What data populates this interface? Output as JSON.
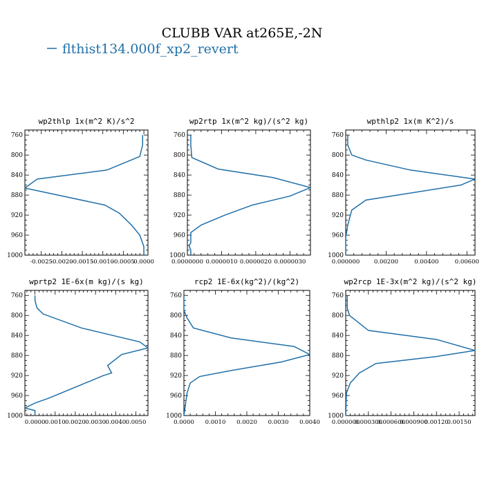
{
  "figure": {
    "title": "CLUBB VAR at265E,-2N",
    "legend_label": "flthist134.000f_xp2_revert",
    "series_color": "#1f6fa8"
  },
  "chart_data": [
    {
      "type": "line",
      "title": "wp2thlp  1x(m^2 K)/s^2",
      "ylim": [
        1000,
        750
      ],
      "xlim": [
        -0.0029,
        0.0001
      ],
      "xticks": [
        -0.0025,
        -0.002,
        -0.0015,
        -0.001,
        -0.0005,
        0.0
      ],
      "xtick_labels": [
        "-0.0025",
        "-0.0020",
        "-0.0015",
        "-0.0010",
        "-0.0005",
        "0.0000"
      ],
      "yticks": [
        760,
        800,
        840,
        880,
        920,
        960,
        1000
      ],
      "series": [
        {
          "x": [
            -3e-05,
            -3e-05,
            -0.0001,
            -0.0009,
            -0.0026,
            -0.0029,
            -0.00095,
            -0.0006,
            -0.0003,
            -0.0001,
            0.0,
            0.0
          ],
          "y": [
            760,
            780,
            803,
            830,
            848,
            866,
            900,
            916,
            940,
            960,
            983,
            1000
          ]
        }
      ]
    },
    {
      "type": "line",
      "title": "wp2rtp  1x(m^2 kg)/(s^2 kg)",
      "ylim": [
        1000,
        750
      ],
      "xlim": [
        0.0,
        3.6e-06
      ],
      "xticks": [
        0.0,
        1e-06,
        2e-06,
        3e-06
      ],
      "xtick_labels": [
        "0.0000000",
        "0.0000010",
        "0.0000020",
        "0.0000030"
      ],
      "yticks": [
        760,
        800,
        840,
        880,
        920,
        960,
        1000
      ],
      "series": [
        {
          "x": [
            1e-07,
            1e-07,
            1.3e-07,
            9e-07,
            2.5e-06,
            3.6e-06,
            3e-06,
            1.9e-06,
            1.1e-06,
            4e-07,
            1e-07,
            1e-07,
            1e-07,
            5e-08,
            1e-07,
            1e-07
          ],
          "y": [
            760,
            780,
            805,
            828,
            845,
            865,
            882,
            900,
            920,
            940,
            955,
            965,
            975,
            982,
            990,
            1000
          ]
        }
      ]
    },
    {
      "type": "line",
      "title": "wpthlp2  1x(m K^2)/s",
      "ylim": [
        1000,
        750
      ],
      "xlim": [
        0.0,
        0.0064
      ],
      "xticks": [
        0.0,
        0.002,
        0.004,
        0.006
      ],
      "xtick_labels": [
        "0.000000",
        "0.00200",
        "0.00400",
        "0.00600"
      ],
      "yticks": [
        760,
        800,
        840,
        880,
        920,
        960,
        1000
      ],
      "series": [
        {
          "x": [
            0.0001,
            0.0001,
            0.0003,
            0.001,
            0.0032,
            0.0064,
            0.0057,
            0.001,
            0.0003,
            0.0001,
            0.0,
            0.0
          ],
          "y": [
            760,
            780,
            800,
            810,
            830,
            848,
            860,
            890,
            910,
            940,
            965,
            1000
          ]
        }
      ]
    },
    {
      "type": "line",
      "title": "wprtp2  1E-6x(m kg)/(s kg)",
      "ylim": [
        1000,
        750
      ],
      "xlim": [
        -0.0005,
        0.0056
      ],
      "xticks": [
        0.0,
        0.001,
        0.002,
        0.003,
        0.004,
        0.005
      ],
      "xtick_labels": [
        "0.0000",
        "0.0010",
        "0.0020",
        "0.0030",
        "0.0040",
        "0.0050"
      ],
      "yticks": [
        760,
        800,
        840,
        880,
        920,
        960,
        1000
      ],
      "series": [
        {
          "x": [
            0.0,
            0.0,
            0.0001,
            0.0004,
            0.0023,
            0.0052,
            0.0056,
            0.0043,
            0.0036,
            0.0038,
            0.0034,
            0.0007,
            0.0,
            -0.0005,
            0.0,
            0.0
          ],
          "y": [
            760,
            770,
            785,
            797,
            825,
            853,
            865,
            878,
            900,
            915,
            920,
            965,
            975,
            985,
            990,
            1000
          ]
        }
      ]
    },
    {
      "type": "line",
      "title": "rcp2  1E-6x(kg^2)/(kg^2)",
      "ylim": [
        1000,
        750
      ],
      "xlim": [
        0.0,
        0.004
      ],
      "xticks": [
        0.0,
        0.001,
        0.002,
        0.003,
        0.004
      ],
      "xtick_labels": [
        "0.0000",
        "0.0010",
        "0.0020",
        "0.0030",
        "0.0040"
      ],
      "yticks": [
        760,
        800,
        840,
        880,
        920,
        960,
        1000
      ],
      "series": [
        {
          "x": [
            0.0,
            0.0,
            0.0001,
            0.0003,
            0.0015,
            0.0035,
            0.004,
            0.0031,
            0.0015,
            0.0005,
            0.0002,
            0.0001,
            0.0
          ],
          "y": [
            760,
            790,
            805,
            825,
            845,
            862,
            878,
            893,
            910,
            922,
            935,
            955,
            1000
          ]
        }
      ]
    },
    {
      "type": "line",
      "title": "wp2rcp  1E-3x(m^2 kg)/(s^2 kg)",
      "ylim": [
        1000,
        750
      ],
      "xlim": [
        0.0,
        0.00171
      ],
      "xticks": [
        0.0,
        0.0003,
        0.0006,
        0.0009,
        0.0012,
        0.0015
      ],
      "xtick_labels": [
        "0.000000",
        "0.000300",
        "0.000600",
        "0.000900",
        "0.00120",
        "0.00150"
      ],
      "yticks": [
        760,
        800,
        840,
        880,
        920,
        960,
        1000
      ],
      "series": [
        {
          "x": [
            2e-05,
            2e-05,
            5e-05,
            0.0003,
            0.0012,
            0.00171,
            0.0012,
            0.0004,
            0.00018,
            6e-05,
            1e-05,
            0.0
          ],
          "y": [
            760,
            785,
            800,
            830,
            848,
            870,
            882,
            896,
            915,
            935,
            955,
            1000
          ]
        }
      ]
    }
  ]
}
